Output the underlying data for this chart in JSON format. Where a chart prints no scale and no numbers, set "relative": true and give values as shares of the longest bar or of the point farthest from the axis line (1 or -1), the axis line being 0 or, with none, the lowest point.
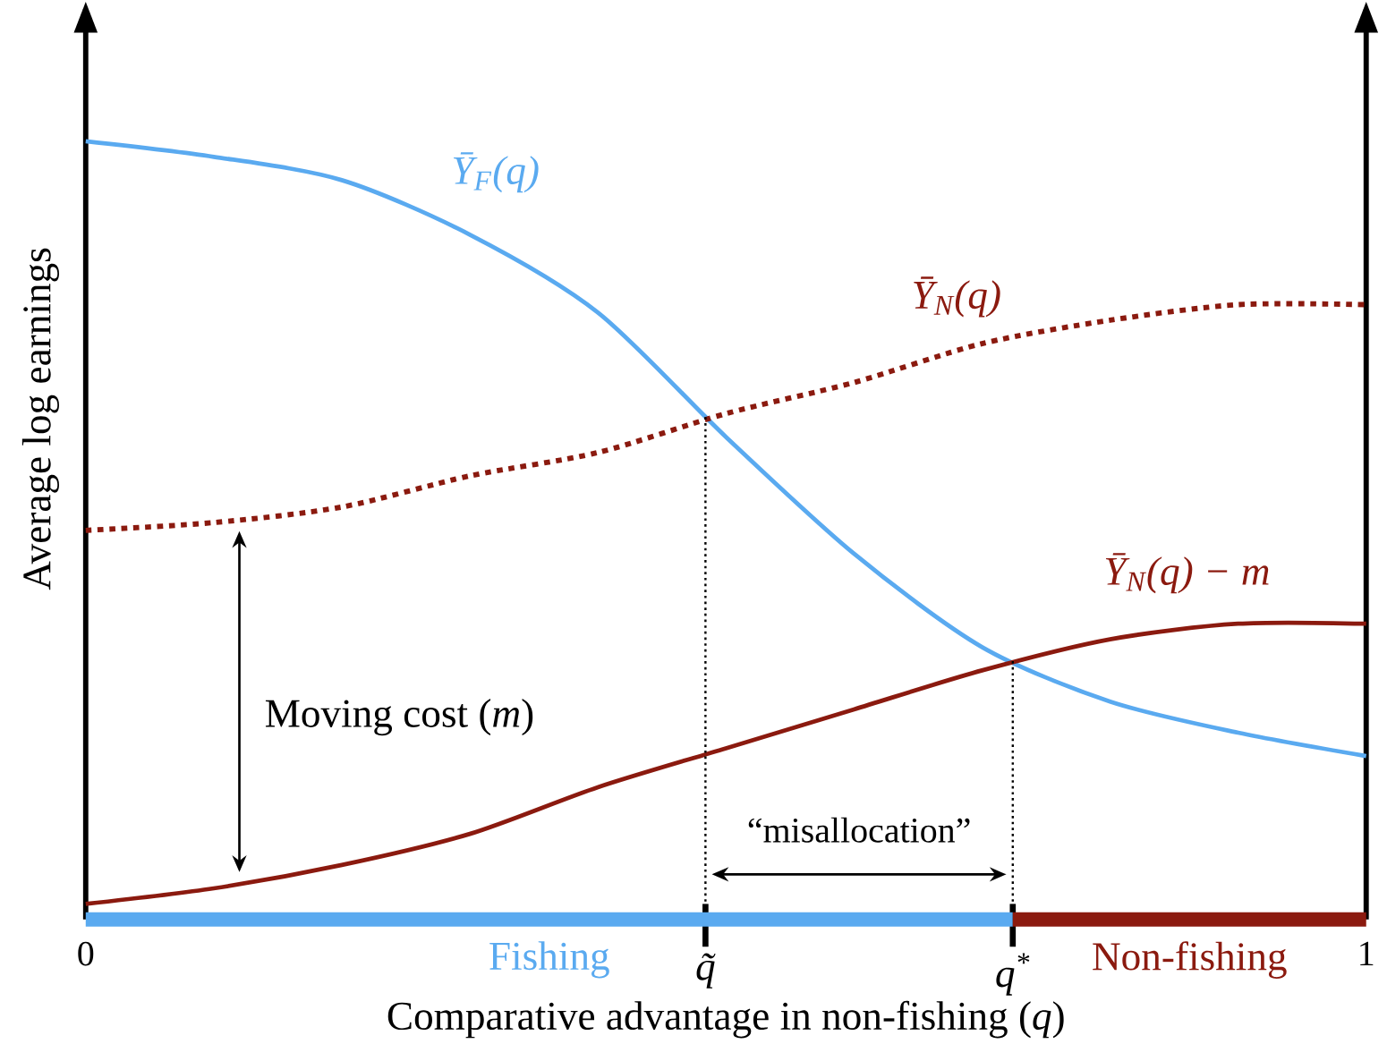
{
  "chart_data": {
    "type": "line",
    "relative": true,
    "xlabel": "Comparative advantage in non-fishing (*q*)",
    "ylabel": "Average log earnings",
    "xlim": [
      0,
      1
    ],
    "xticks": [
      0,
      1
    ],
    "tick_labels": "x",
    "grid": false,
    "marker": "none",
    "x": [
      0,
      0.1,
      0.2,
      0.3,
      0.4,
      0.5,
      0.6,
      0.7,
      0.8,
      0.9,
      1
    ],
    "series": [
      {
        "name": "Ȳ$_{F}$(q)",
        "color": "#5aaaf0",
        "line_style": "solid",
        "values": [
          1.0,
          0.98,
          0.95,
          0.88,
          0.78,
          0.62,
          0.47,
          0.35,
          0.28,
          0.24,
          0.21
        ]
      },
      {
        "name": "Ȳ$_{N}$(q)",
        "color": "#8b1a0f",
        "line_style": "dotted",
        "values": [
          0.5,
          0.51,
          0.53,
          0.57,
          0.6,
          0.65,
          0.69,
          0.74,
          0.77,
          0.79,
          0.79
        ]
      },
      {
        "name": "Ȳ$_{N}$(q) − m",
        "color": "#8b1a0f",
        "line_style": "solid",
        "values": [
          0.02,
          0.04,
          0.07,
          0.11,
          0.17,
          0.22,
          0.27,
          0.32,
          0.36,
          0.38,
          0.38
        ]
      }
    ],
    "ref_lines": [
      {
        "axis": "x",
        "value": 0.484,
        "label": "q̃",
        "line_style": "dotted"
      },
      {
        "axis": "x",
        "value": 0.724,
        "label": "q$^{*}$",
        "line_style": "dotted"
      }
    ],
    "annotations": [
      "Moving cost (*m*)",
      "“misallocation”",
      "Fishing",
      "Non-fishing"
    ]
  }
}
